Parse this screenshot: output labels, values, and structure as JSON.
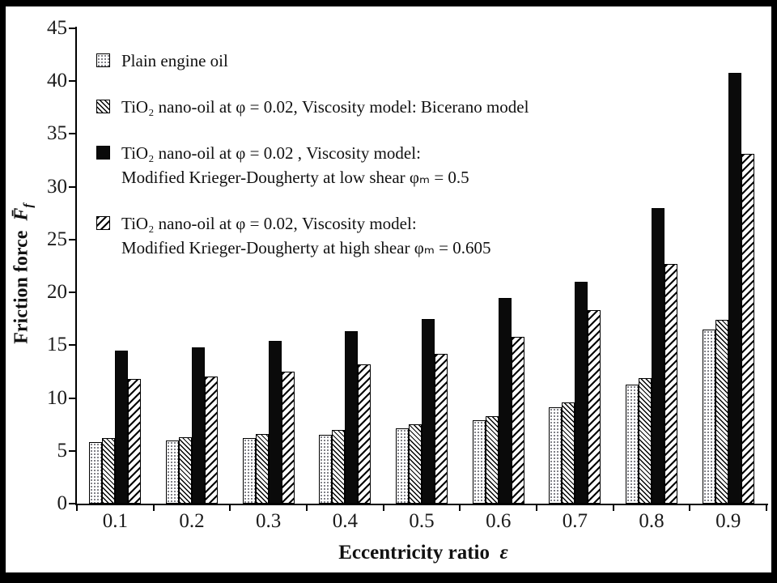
{
  "chart_data": {
    "type": "bar",
    "title": "",
    "xlabel": "Eccentricity ratio ε",
    "xlabel_text": "Eccentricity ratio",
    "xlabel_sym": "ε",
    "ylabel": "Friction force F̄f",
    "ylabel_text": "Friction force",
    "ylabel_sym": "F̄",
    "ylabel_sub": "f",
    "ylim": [
      0,
      45
    ],
    "yticks": [
      0,
      5,
      10,
      15,
      20,
      25,
      30,
      35,
      40,
      45
    ],
    "grid": false,
    "legend_position": "inside-top-left",
    "categories": [
      "0.1",
      "0.2",
      "0.3",
      "0.4",
      "0.5",
      "0.6",
      "0.7",
      "0.8",
      "0.9"
    ],
    "series": [
      {
        "name": "Plain engine oil",
        "pattern": "dots",
        "legend_lines": [
          "Plain engine oil"
        ],
        "values": [
          5.8,
          6.0,
          6.2,
          6.5,
          7.1,
          7.9,
          9.1,
          11.3,
          16.5
        ]
      },
      {
        "name": "TiO₂ nano-oil at φ = 0.02, Viscosity model: Bicerano model",
        "pattern": "backslash",
        "legend_lines": [
          "TiO₂ nano-oil at  φ = 0.02, Viscosity model: Bicerano model"
        ],
        "values": [
          6.2,
          6.3,
          6.6,
          7.0,
          7.5,
          8.3,
          9.6,
          11.9,
          17.4
        ]
      },
      {
        "name": "TiO₂ nano-oil at φ = 0.02, Viscosity model: Modified Krieger-Dougherty at low shear φₘ = 0.5",
        "pattern": "solid",
        "legend_lines": [
          "TiO₂ nano-oil at φ = 0.02 , Viscosity model:",
          "Modified Krieger-Dougherty at low shear  φₘ = 0.5"
        ],
        "values": [
          14.5,
          14.8,
          15.4,
          16.3,
          17.5,
          19.5,
          21.0,
          28.0,
          40.8
        ]
      },
      {
        "name": "TiO₂ nano-oil at φ = 0.02, Viscosity model: Modified Krieger-Dougherty at high shear φₘ = 0.605",
        "pattern": "slash",
        "legend_lines": [
          "TiO₂ nano-oil at  φ = 0.02, Viscosity model:",
          "Modified Krieger-Dougherty at high shear φₘ = 0.605"
        ],
        "values": [
          11.8,
          12.0,
          12.5,
          13.2,
          14.2,
          15.8,
          18.3,
          22.7,
          33.1
        ]
      }
    ]
  }
}
